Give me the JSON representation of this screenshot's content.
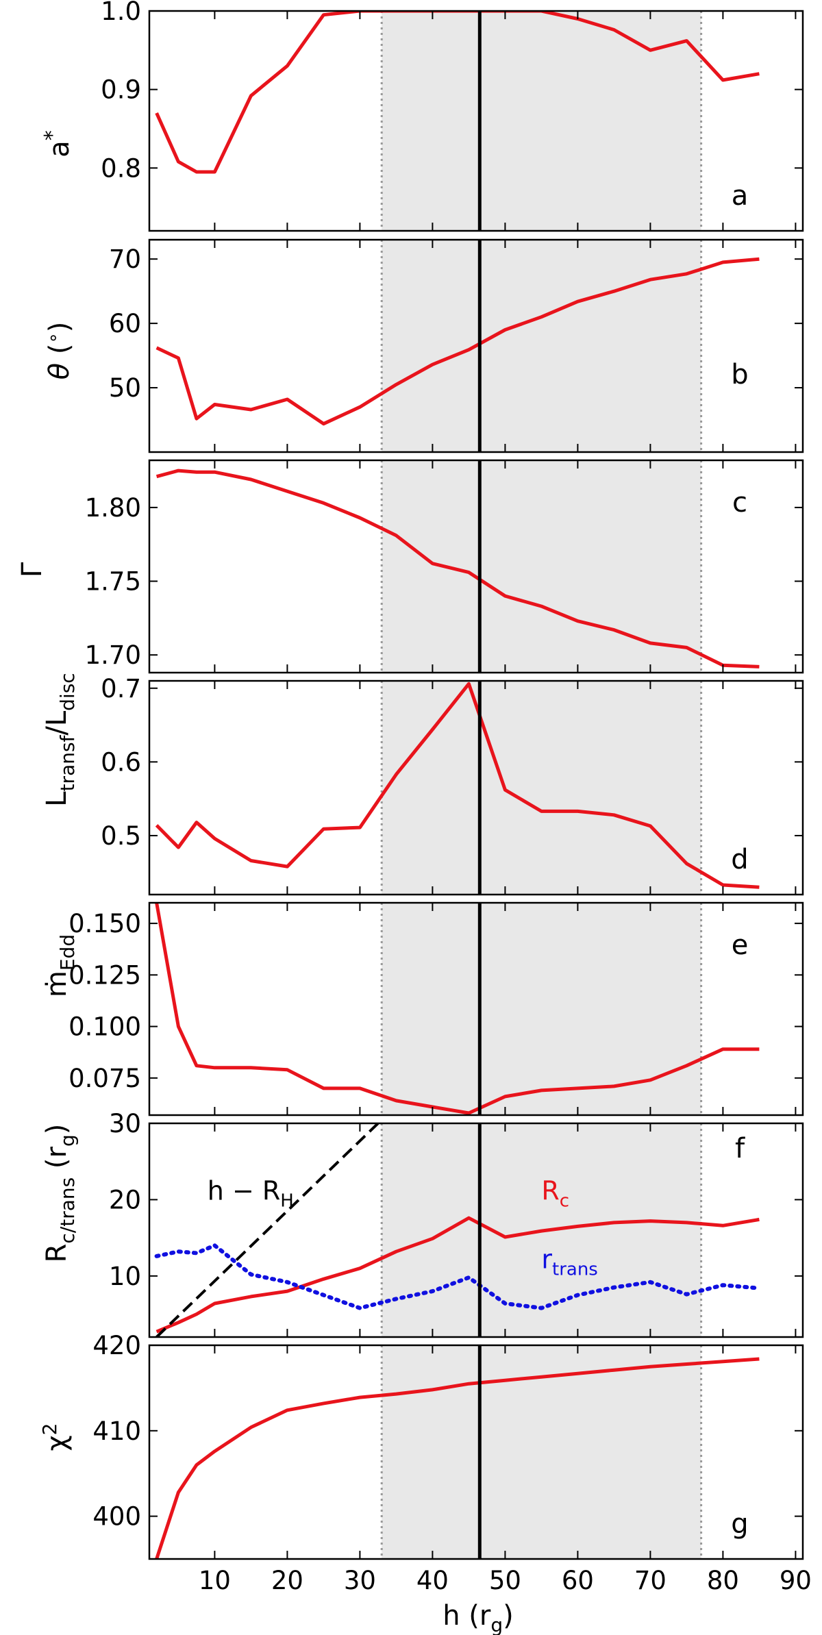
{
  "chart_data": [
    {
      "type": "line",
      "panel": "a",
      "ylabel": "a*",
      "ylim": [
        0.72,
        1.0
      ],
      "yticks": [
        "0.8",
        "0.9",
        "1.0"
      ],
      "ytick_values": [
        0.8,
        0.9,
        1.0
      ],
      "series": [
        {
          "color": "#e8141c",
          "style": "solid",
          "x": [
            2,
            5,
            7.5,
            10,
            15,
            20,
            25,
            30,
            35,
            40,
            45,
            50,
            55,
            60,
            65,
            70,
            75,
            80,
            85
          ],
          "y": [
            0.87,
            0.808,
            0.795,
            0.795,
            0.892,
            0.93,
            0.995,
            1.0,
            1.0,
            1.0,
            1.0,
            1.0,
            1.0,
            0.99,
            0.976,
            0.95,
            0.962,
            0.912,
            0.92
          ]
        }
      ]
    },
    {
      "type": "line",
      "panel": "b",
      "ylabel": "θ (°)",
      "ylim": [
        40,
        73
      ],
      "yticks": [
        "50",
        "60",
        "70"
      ],
      "ytick_values": [
        50,
        60,
        70
      ],
      "series": [
        {
          "color": "#e8141c",
          "style": "solid",
          "x": [
            2,
            5,
            7.5,
            10,
            15,
            20,
            25,
            30,
            35,
            40,
            45,
            50,
            55,
            60,
            65,
            70,
            75,
            80,
            85
          ],
          "y": [
            56.2,
            54.6,
            45.2,
            47.4,
            46.6,
            48.2,
            44.4,
            47.0,
            50.5,
            53.6,
            55.9,
            59.0,
            61.0,
            63.4,
            65.0,
            66.8,
            67.7,
            69.5,
            70.0
          ]
        }
      ]
    },
    {
      "type": "line",
      "panel": "c",
      "ylabel": "Γ",
      "ylim": [
        1.688,
        1.832
      ],
      "yticks": [
        "1.70",
        "1.75",
        "1.80"
      ],
      "ytick_values": [
        1.7,
        1.75,
        1.8
      ],
      "series": [
        {
          "color": "#e8141c",
          "style": "solid",
          "x": [
            2,
            5,
            7.5,
            10,
            15,
            20,
            25,
            30,
            35,
            40,
            45,
            50,
            55,
            60,
            65,
            70,
            75,
            80,
            85
          ],
          "y": [
            1.821,
            1.825,
            1.824,
            1.824,
            1.819,
            1.811,
            1.803,
            1.793,
            1.781,
            1.762,
            1.756,
            1.74,
            1.733,
            1.723,
            1.717,
            1.708,
            1.705,
            1.693,
            1.692
          ]
        }
      ]
    },
    {
      "type": "line",
      "panel": "d",
      "ylabel": "L_transf/L_disc",
      "ylim": [
        0.42,
        0.71
      ],
      "yticks": [
        "0.5",
        "0.6",
        "0.7"
      ],
      "ytick_values": [
        0.5,
        0.6,
        0.7
      ],
      "series": [
        {
          "color": "#e8141c",
          "style": "solid",
          "x": [
            2,
            5,
            7.5,
            10,
            15,
            20,
            25,
            30,
            35,
            40,
            45,
            50,
            55,
            60,
            65,
            70,
            75,
            80,
            85
          ],
          "y": [
            0.514,
            0.484,
            0.518,
            0.496,
            0.466,
            0.458,
            0.509,
            0.511,
            0.583,
            0.644,
            0.706,
            0.562,
            0.533,
            0.533,
            0.528,
            0.513,
            0.462,
            0.433,
            0.43
          ]
        }
      ]
    },
    {
      "type": "line",
      "panel": "e",
      "ylabel": "ṁ_Edd",
      "ylim": [
        0.057,
        0.16
      ],
      "yticks": [
        "0.075",
        "0.100",
        "0.125",
        "0.150"
      ],
      "ytick_values": [
        0.075,
        0.1,
        0.125,
        0.15
      ],
      "series": [
        {
          "color": "#e8141c",
          "style": "solid",
          "x": [
            2,
            5,
            7.5,
            10,
            15,
            20,
            25,
            30,
            35,
            40,
            45,
            50,
            55,
            60,
            65,
            70,
            75,
            80,
            85
          ],
          "y": [
            0.16,
            0.1,
            0.081,
            0.08,
            0.08,
            0.079,
            0.07,
            0.07,
            0.064,
            0.061,
            0.058,
            0.066,
            0.069,
            0.07,
            0.071,
            0.074,
            0.081,
            0.089,
            0.089
          ]
        }
      ]
    },
    {
      "type": "line",
      "panel": "f",
      "ylabel": "R_c/trans (r_g)",
      "ylim": [
        2,
        30
      ],
      "yticks": [
        "10",
        "20",
        "30"
      ],
      "ytick_values": [
        10,
        20,
        30
      ],
      "annotations": [
        {
          "text_main": "h − R",
          "text_sub": "H",
          "x": 9,
          "y": 20
        },
        {
          "text_main": "R",
          "text_sub": "c",
          "x": 55,
          "y": 20
        },
        {
          "text_main": "r",
          "text_sub": "trans",
          "x": 55,
          "y": 11
        }
      ],
      "series": [
        {
          "name": "R_c",
          "color": "#e8141c",
          "style": "solid",
          "x": [
            2,
            5,
            7.5,
            10,
            15,
            20,
            25,
            30,
            35,
            40,
            45,
            50,
            55,
            60,
            65,
            70,
            75,
            80,
            85
          ],
          "y": [
            2.7,
            3.9,
            5.0,
            6.4,
            7.3,
            8.0,
            9.6,
            11.0,
            13.2,
            14.9,
            17.6,
            15.1,
            15.9,
            16.5,
            17.0,
            17.2,
            17.0,
            16.6,
            17.4
          ]
        },
        {
          "name": "r_trans",
          "color": "#1010e0",
          "style": "dotted",
          "x": [
            2,
            5,
            7.5,
            10,
            15,
            20,
            25,
            30,
            35,
            40,
            45,
            50,
            55,
            60,
            65,
            70,
            75,
            80,
            85
          ],
          "y": [
            12.6,
            13.2,
            13.0,
            14.0,
            10.2,
            9.2,
            7.5,
            5.8,
            7.0,
            8.0,
            9.8,
            6.4,
            5.8,
            7.5,
            8.5,
            9.2,
            7.6,
            8.8,
            8.4
          ]
        },
        {
          "name": "h − R_H",
          "color": "#000000",
          "style": "dashed",
          "x": [
            2,
            32.5
          ],
          "y": [
            2,
            30
          ]
        }
      ]
    },
    {
      "type": "line",
      "panel": "g",
      "ylabel": "χ²",
      "ylim": [
        395,
        420
      ],
      "yticks": [
        "400",
        "410",
        "420"
      ],
      "ytick_values": [
        400,
        410,
        420
      ],
      "xlabel": "h (r_g)",
      "xticks": [
        "10",
        "20",
        "30",
        "40",
        "50",
        "60",
        "70",
        "80",
        "90"
      ],
      "series": [
        {
          "color": "#e8141c",
          "style": "solid",
          "x": [
            2,
            5,
            7.5,
            10,
            15,
            20,
            25,
            30,
            35,
            40,
            45,
            50,
            55,
            60,
            65,
            70,
            75,
            80,
            85
          ],
          "y": [
            395.0,
            402.8,
            406.0,
            407.6,
            410.4,
            412.4,
            413.2,
            413.9,
            414.3,
            414.8,
            415.5,
            415.9,
            416.3,
            416.7,
            417.1,
            417.5,
            417.8,
            418.1,
            418.4
          ]
        }
      ]
    }
  ],
  "shared_x": {
    "xlim": [
      1,
      91
    ],
    "xtick_values": [
      10,
      20,
      30,
      40,
      50,
      60,
      70,
      80,
      90
    ],
    "shaded_region": [
      33,
      77
    ],
    "vertical_line": 46.5,
    "xlabel_main": "h (r",
    "xlabel_sub": "g",
    "xlabel_close": ")"
  },
  "labels": {
    "panel_a_ylabel": "a",
    "panel_a_ylabel_sup": "*",
    "panel_b_ylabel_theta": "θ",
    "panel_b_ylabel_rest": " (",
    "panel_b_ylabel_deg": "∘",
    "panel_b_ylabel_close": ")",
    "panel_c_ylabel": "Γ",
    "panel_d_ylabel_L1": "L",
    "panel_d_ylabel_sub1": "transf",
    "panel_d_ylabel_slash": "/L",
    "panel_d_ylabel_sub2": "disc",
    "panel_e_ylabel": "ṁ",
    "panel_e_ylabel_sub": "Edd",
    "panel_f_ylabel": "R",
    "panel_f_ylabel_sub": "c/trans",
    "panel_f_ylabel_rest": " (r",
    "panel_f_ylabel_sub2": "g",
    "panel_f_ylabel_close": ")",
    "panel_g_ylabel": "χ",
    "panel_g_ylabel_sup": "2"
  }
}
